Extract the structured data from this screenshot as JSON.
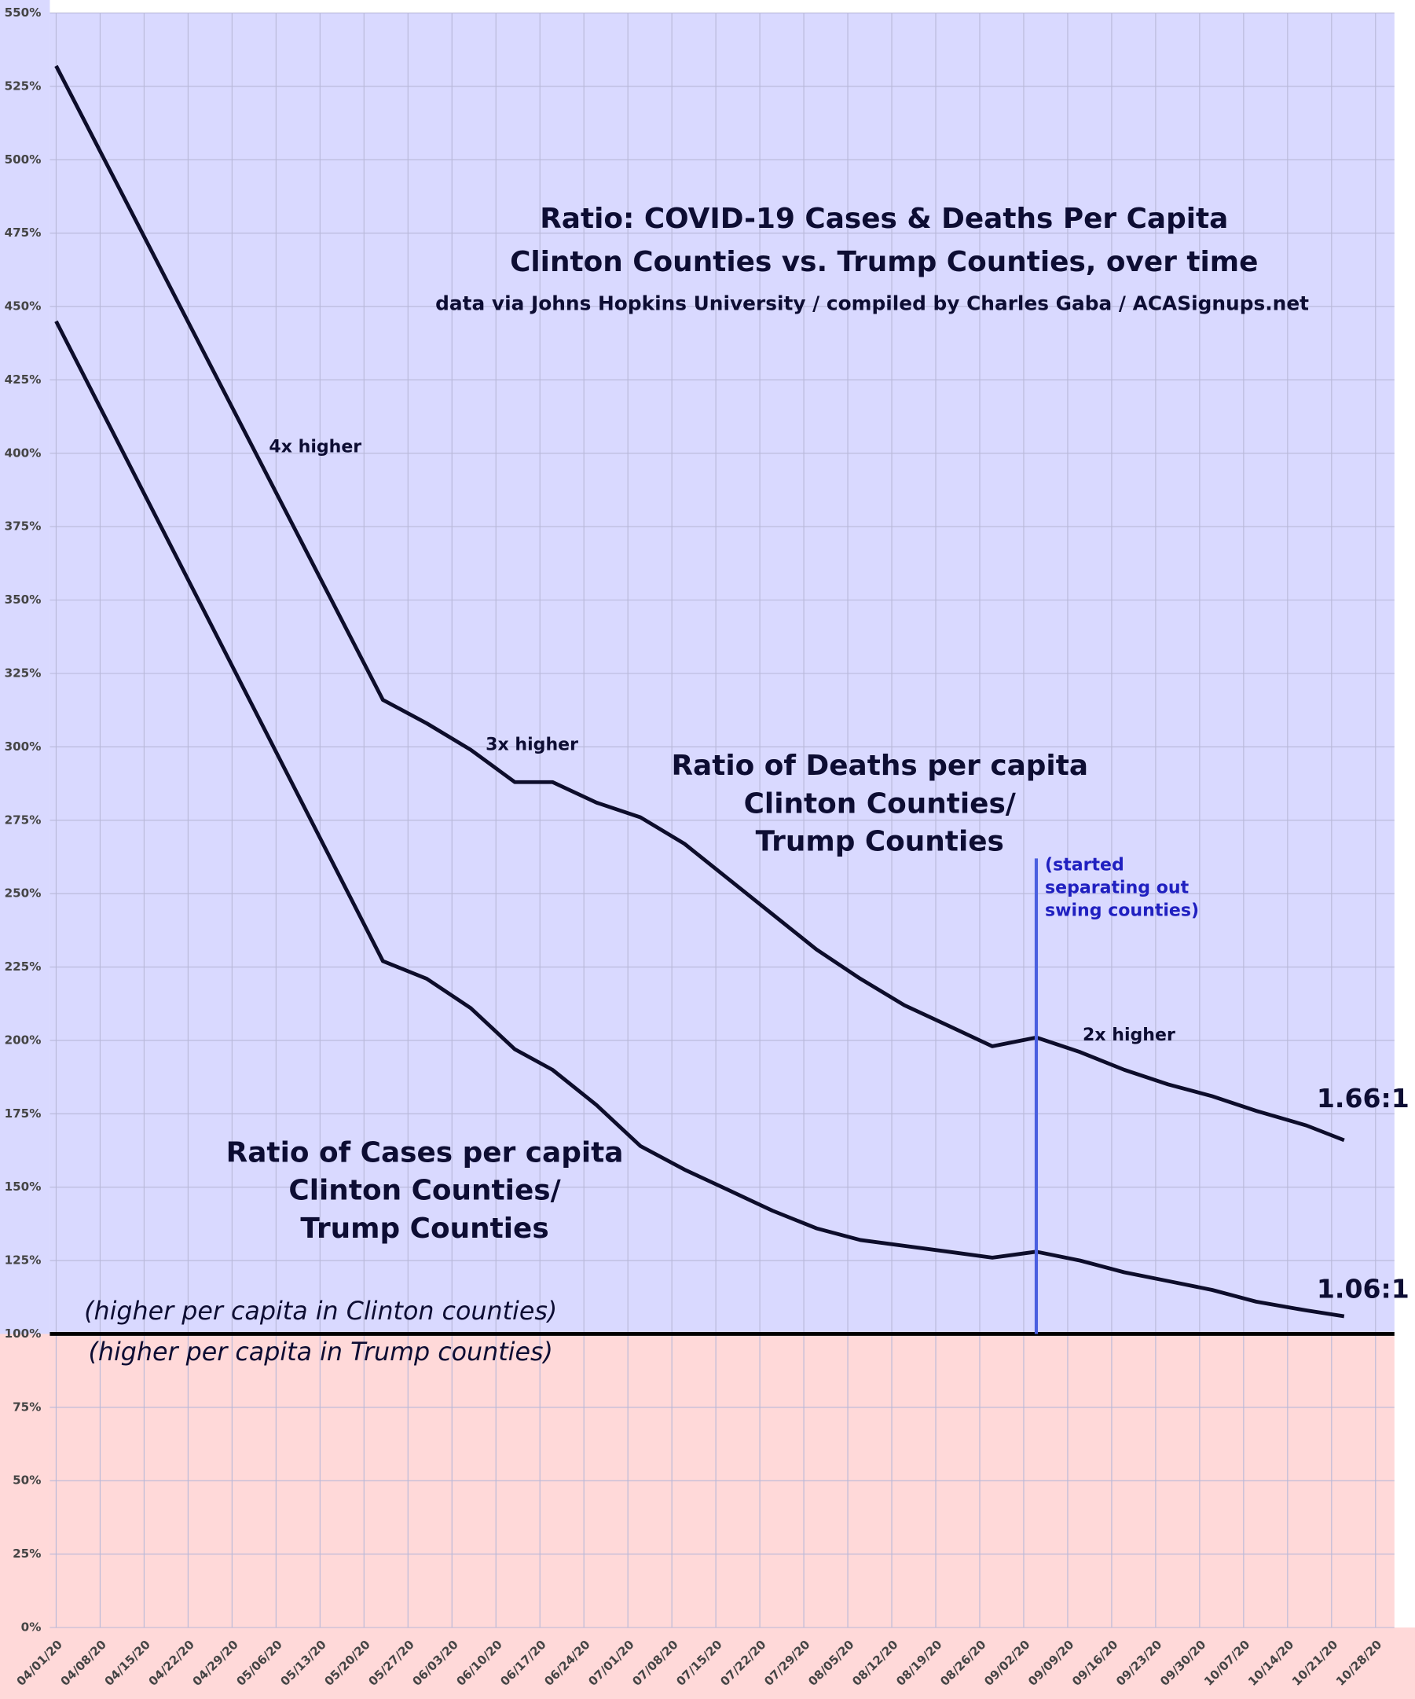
{
  "chart_data": {
    "type": "line",
    "title": "Ratio: COVID-19 Cases & Deaths Per Capita",
    "subtitle": "Clinton Counties vs. Trump Counties, over time",
    "source": "data via Johns Hopkins University / compiled by Charles Gaba / ACASignups.net",
    "x": [
      "04/01/20",
      "05/23/20",
      "05/30/20",
      "06/06/20",
      "06/13/20",
      "06/19/20",
      "06/26/20",
      "07/03/20",
      "07/10/20",
      "07/17/20",
      "07/24/20",
      "07/31/20",
      "08/07/20",
      "08/14/20",
      "08/21/20",
      "08/28/20",
      "09/04/20",
      "09/11/20",
      "09/18/20",
      "09/25/20",
      "10/02/20",
      "10/09/20",
      "10/17/20",
      "10/23/20"
    ],
    "series": [
      {
        "name": "Ratio of Deaths per capita Clinton Counties/ Trump Counties",
        "label_lines": [
          "Ratio of Deaths per capita",
          "Clinton Counties/",
          "Trump Counties"
        ],
        "end_label": "1.66:1",
        "color": "#0d0d2b",
        "values": [
          532,
          316,
          308,
          299,
          288,
          288,
          281,
          276,
          267,
          255,
          243,
          231,
          221,
          212,
          205,
          198,
          201,
          196,
          190,
          185,
          181,
          176,
          171,
          166
        ]
      },
      {
        "name": "Ratio of Cases per capita Clinton Counties/ Trump Counties",
        "label_lines": [
          "Ratio of Cases per capita",
          "Clinton Counties/",
          "Trump Counties"
        ],
        "end_label": "1.06:1",
        "color": "#0d0d2b",
        "values": [
          445,
          227,
          221,
          211,
          197,
          190,
          178,
          164,
          156,
          149,
          142,
          136,
          132,
          130,
          128,
          126,
          128,
          125,
          121,
          118,
          115,
          111,
          108,
          106
        ]
      }
    ],
    "xlim": [
      "03/31/20",
      "10/31/20"
    ],
    "xticks": [
      "04/01/20",
      "04/08/20",
      "04/15/20",
      "04/22/20",
      "04/29/20",
      "05/06/20",
      "05/13/20",
      "05/20/20",
      "05/27/20",
      "06/03/20",
      "06/10/20",
      "06/17/20",
      "06/24/20",
      "07/01/20",
      "07/08/20",
      "07/15/20",
      "07/22/20",
      "07/29/20",
      "08/05/20",
      "08/12/20",
      "08/19/20",
      "08/26/20",
      "09/02/20",
      "09/09/20",
      "09/16/20",
      "09/23/20",
      "09/30/20",
      "10/07/20",
      "10/14/20",
      "10/21/20",
      "10/28/20"
    ],
    "ylim": [
      0,
      550
    ],
    "yticks": [
      {
        "value": 0,
        "label": "0%"
      },
      {
        "value": 25,
        "label": "25%"
      },
      {
        "value": 50,
        "label": "50%"
      },
      {
        "value": 75,
        "label": "75%"
      },
      {
        "value": 100,
        "label": "100%"
      },
      {
        "value": 125,
        "label": "125%"
      },
      {
        "value": 150,
        "label": "150%"
      },
      {
        "value": 175,
        "label": "175%"
      },
      {
        "value": 200,
        "label": "200%"
      },
      {
        "value": 225,
        "label": "225%"
      },
      {
        "value": 250,
        "label": "250%"
      },
      {
        "value": 275,
        "label": "275%"
      },
      {
        "value": 300,
        "label": "300%"
      },
      {
        "value": 325,
        "label": "325%"
      },
      {
        "value": 350,
        "label": "350%"
      },
      {
        "value": 375,
        "label": "375%"
      },
      {
        "value": 400,
        "label": "400%"
      },
      {
        "value": 425,
        "label": "425%"
      },
      {
        "value": 450,
        "label": "450%"
      },
      {
        "value": 475,
        "label": "475%"
      },
      {
        "value": 500,
        "label": "500%"
      },
      {
        "value": 525,
        "label": "525%"
      },
      {
        "value": 550,
        "label": "550%"
      }
    ],
    "grid": true,
    "baseline": 100,
    "above_color": "#d9d9ff",
    "below_color": "#ffd9d9",
    "region_labels": {
      "above": "(higher per capita in Clinton counties)",
      "below": "(higher per capita in Trump counties)"
    },
    "annotations": [
      "4x higher",
      "3x higher",
      "2x higher"
    ],
    "marker": {
      "x": "09/04/20",
      "top": 262,
      "color": "#4a5fe0",
      "text": [
        "(started",
        "separating out",
        "swing counties)"
      ]
    }
  }
}
